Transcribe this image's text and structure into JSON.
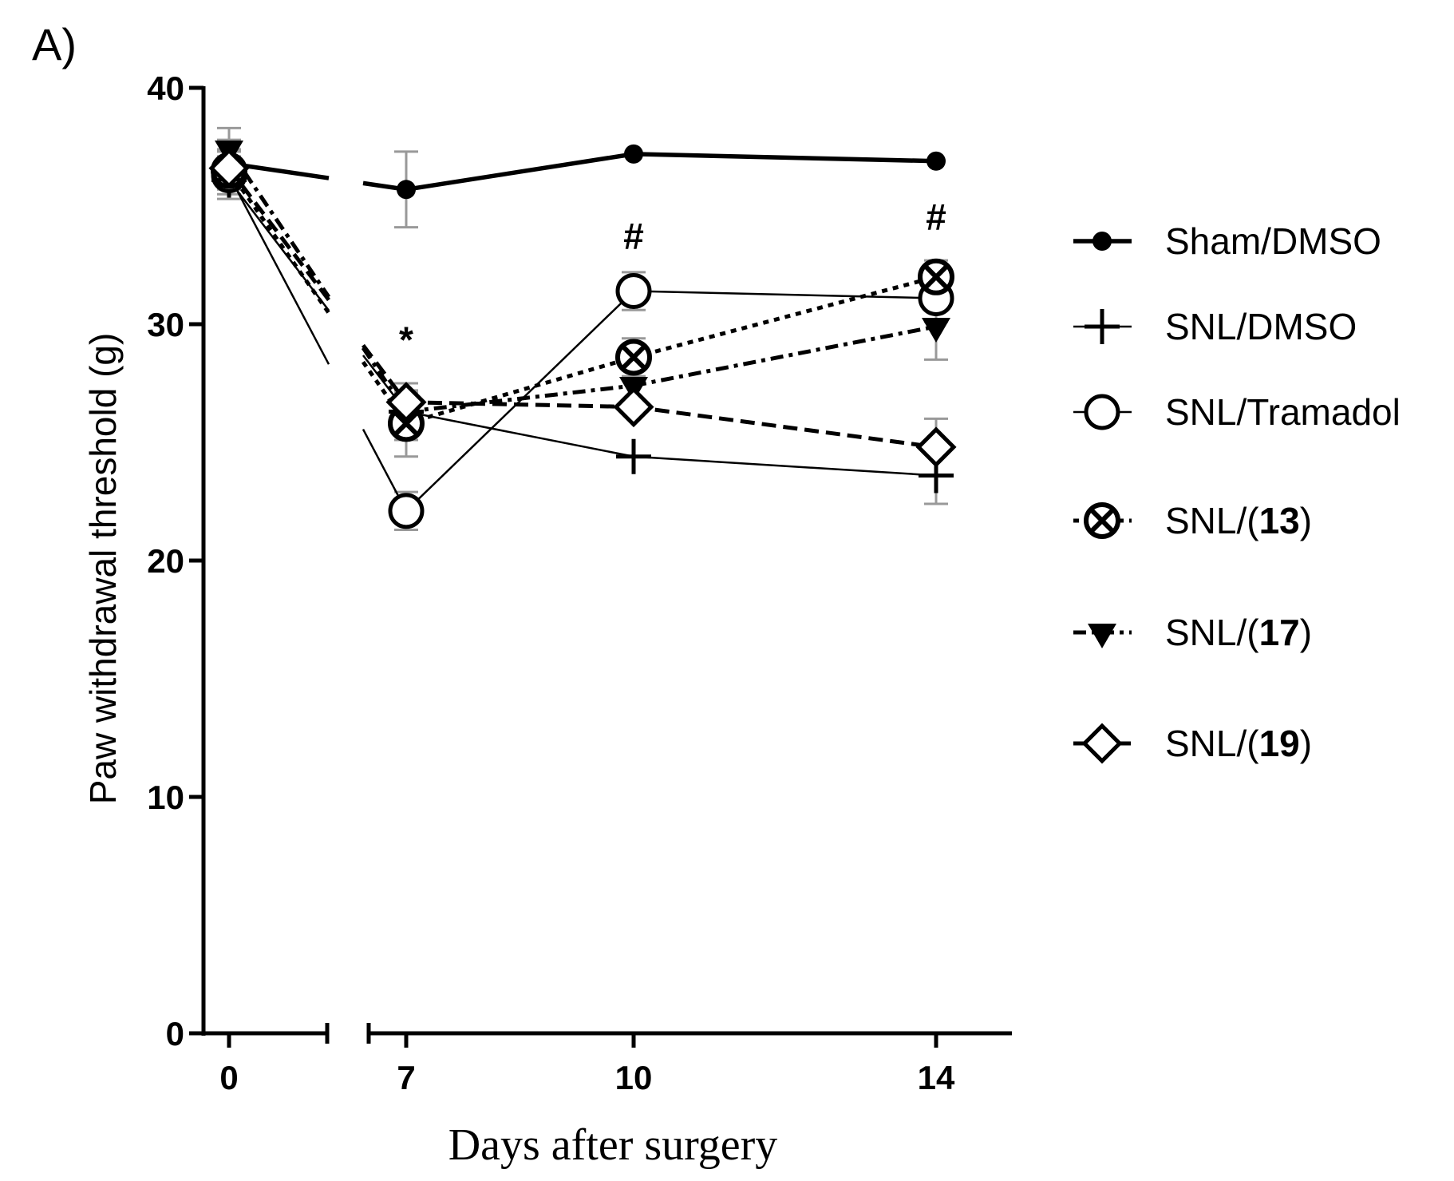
{
  "panel_label": "A)",
  "chart_data": {
    "type": "line",
    "title": "",
    "xlabel": "Days after surgery",
    "ylabel": "Paw withdrawal threshold (g)",
    "x": [
      0,
      7,
      10,
      14
    ],
    "x_tick_labels": [
      "0",
      "7",
      "10",
      "14"
    ],
    "y_ticks": [
      0,
      10,
      20,
      30,
      40
    ],
    "y_tick_labels": [
      "0",
      "10",
      "20",
      "30",
      "40"
    ],
    "ylim": [
      0,
      40
    ],
    "axis_break_between": [
      0,
      7
    ],
    "legend_position": "right",
    "series": [
      {
        "name": "Sham/DMSO",
        "label_prefix": "Sham/DMSO",
        "label_bold": "",
        "label_suffix": "",
        "marker": "filled-circle",
        "line": "solid-thick",
        "values": [
          36.8,
          35.7,
          37.2,
          36.9
        ],
        "errors": [
          1.0,
          1.6,
          0,
          0
        ]
      },
      {
        "name": "SNL/DMSO",
        "label_prefix": "SNL/DMSO",
        "label_bold": "",
        "label_suffix": "",
        "marker": "plus",
        "line": "solid-thin",
        "values": [
          36.1,
          26.3,
          24.4,
          23.6
        ],
        "errors": [
          0.8,
          0.8,
          0,
          1.2
        ]
      },
      {
        "name": "SNL/Tramadol",
        "label_prefix": "SNL/Tramadol",
        "label_bold": "",
        "label_suffix": "",
        "marker": "open-circle",
        "line": "solid-thin",
        "values": [
          36.3,
          22.1,
          31.4,
          31.1
        ],
        "errors": [
          0.8,
          0.8,
          0.8,
          1.0
        ]
      },
      {
        "name": "SNL/(13)",
        "label_prefix": "SNL/(",
        "label_bold": "13",
        "label_suffix": ")",
        "marker": "circle-x",
        "line": "dotted",
        "values": [
          36.5,
          25.8,
          28.6,
          32.0
        ],
        "errors": [
          0.8,
          1.4,
          0.8,
          0.7
        ]
      },
      {
        "name": "SNL/(17)",
        "label_prefix": "SNL/(",
        "label_bold": "17",
        "label_suffix": ")",
        "marker": "filled-triangle-down",
        "line": "dash-dot",
        "values": [
          37.4,
          26.3,
          27.4,
          29.9
        ],
        "errors": [
          0.9,
          1.2,
          0.8,
          1.4
        ]
      },
      {
        "name": "SNL/(19)",
        "label_prefix": "SNL/(",
        "label_bold": "19",
        "label_suffix": ")",
        "marker": "open-diamond",
        "line": "dashed",
        "values": [
          36.6,
          26.7,
          26.5,
          24.8
        ],
        "errors": [
          0.8,
          0.8,
          0,
          1.2
        ]
      }
    ],
    "annotations": [
      {
        "text": "*",
        "x": 7,
        "y": 28.8
      },
      {
        "text": "#",
        "x": 10,
        "y": 33.2
      },
      {
        "text": "#",
        "x": 14,
        "y": 34.0
      }
    ]
  }
}
